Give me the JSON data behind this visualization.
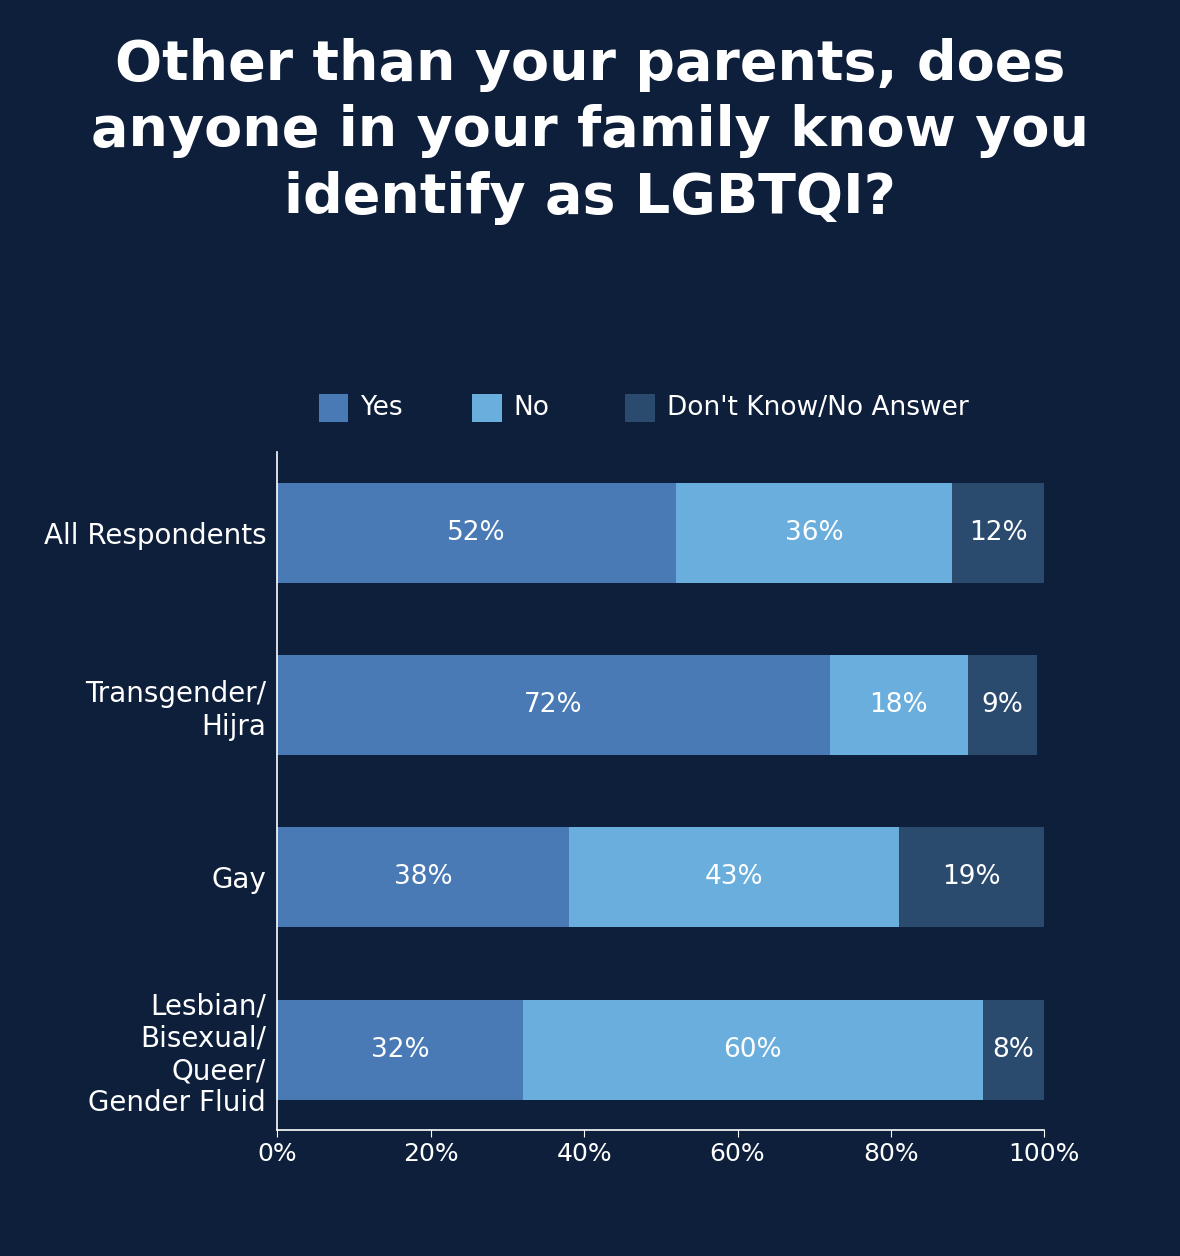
{
  "title": "Other than your parents, does\nanyone in your family know you\nidentify as LGBTQI?",
  "background_color": "#0e1f3b",
  "title_color": "#ffffff",
  "title_fontsize": 40,
  "categories": [
    "All Respondents",
    "Transgender/\nHijra",
    "Gay",
    "Lesbian/\nBisexual/\nQueer/\nGender Fluid"
  ],
  "yes_values": [
    52,
    72,
    38,
    32
  ],
  "no_values": [
    36,
    18,
    43,
    60
  ],
  "dk_values": [
    12,
    9,
    19,
    8
  ],
  "yes_color": "#4a7ab5",
  "no_color": "#6aaede",
  "dk_color": "#2a4a6e",
  "label_color": "#ffffff",
  "label_fontsize": 19,
  "tick_color": "#ffffff",
  "tick_fontsize": 18,
  "ytick_fontsize": 20,
  "legend_labels": [
    "Yes",
    "No",
    "Don't Know/No Answer"
  ],
  "legend_fontsize": 19,
  "xlim": [
    0,
    100
  ],
  "xticks": [
    0,
    20,
    40,
    60,
    80,
    100
  ],
  "xtick_labels": [
    "0%",
    "20%",
    "40%",
    "60%",
    "80%",
    "100%"
  ]
}
